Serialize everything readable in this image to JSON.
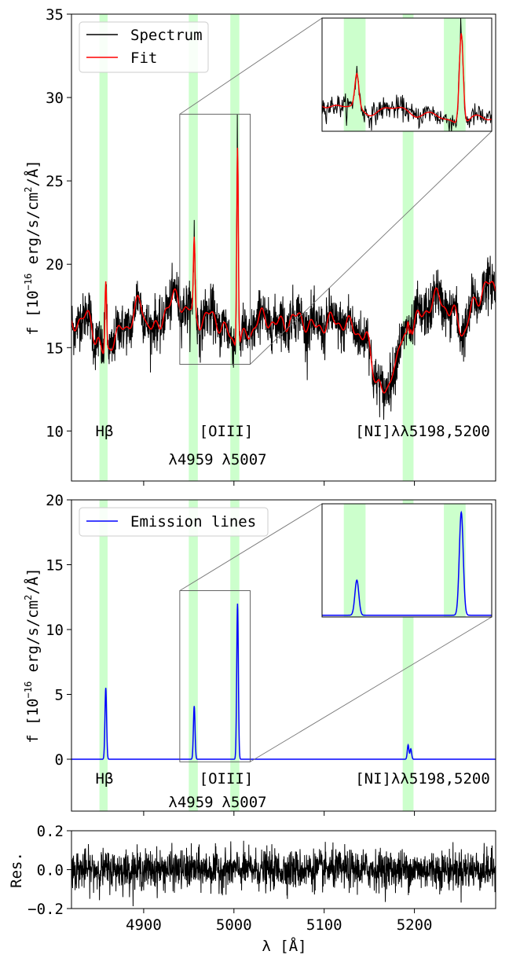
{
  "chart_data": [
    {
      "type": "line",
      "panel": "top",
      "ylabel_prefix": "f [10",
      "ylabel_exp": "−16",
      "ylabel_mid": " erg/s/cm",
      "ylabel_sq": "2",
      "ylabel_suffix": "/Å]",
      "xlim": [
        4820,
        5290
      ],
      "ylim": [
        7,
        35
      ],
      "yticks": [
        "10",
        "15",
        "20",
        "25",
        "30",
        "35"
      ],
      "yticks_values": [
        10,
        15,
        20,
        25,
        30,
        35
      ],
      "legend": [
        {
          "label": "Spectrum",
          "color": "#000000"
        },
        {
          "label": "Fit",
          "color": "#ff0000"
        }
      ],
      "shaded_regions": [
        [
          4851,
          4860
        ],
        [
          4950,
          4960
        ],
        [
          4996,
          5006
        ],
        [
          5187,
          5199
        ]
      ],
      "line_labels": {
        "hbeta": "Hβ",
        "oiii": "[OIII]",
        "l4959": "λ4959",
        "l5007": "λ5007",
        "ni": "[NI]λλ5198,5200"
      },
      "continuum_points": [
        [
          4820,
          16.5
        ],
        [
          4840,
          16.8
        ],
        [
          4848,
          15.5
        ],
        [
          4856,
          14.5
        ],
        [
          4870,
          15.8
        ],
        [
          4880,
          16.2
        ],
        [
          4895,
          17.6
        ],
        [
          4905,
          16.5
        ],
        [
          4915,
          16.0
        ],
        [
          4925,
          17.4
        ],
        [
          4935,
          18.0
        ],
        [
          4950,
          17.2
        ],
        [
          4965,
          16.6
        ],
        [
          4975,
          17.0
        ],
        [
          4990,
          16.0
        ],
        [
          5005,
          15.2
        ],
        [
          5015,
          15.8
        ],
        [
          5030,
          16.8
        ],
        [
          5050,
          16.4
        ],
        [
          5070,
          16.8
        ],
        [
          5090,
          16.2
        ],
        [
          5110,
          16.6
        ],
        [
          5130,
          16.3
        ],
        [
          5145,
          15.6
        ],
        [
          5160,
          13.0
        ],
        [
          5168,
          12.0
        ],
        [
          5178,
          14.2
        ],
        [
          5190,
          15.6
        ],
        [
          5205,
          16.8
        ],
        [
          5225,
          18.0
        ],
        [
          5240,
          17.2
        ],
        [
          5255,
          16.0
        ],
        [
          5265,
          17.5
        ],
        [
          5280,
          18.8
        ],
        [
          5290,
          18.5
        ]
      ],
      "emission_lines": [
        {
          "name": "Hβ",
          "center": 4858,
          "peak": 4.2
        },
        {
          "name": "[OIII] 4959",
          "center": 4956,
          "peak": 4.3
        },
        {
          "name": "[OIII] 5007",
          "center": 5004,
          "peak": 12.2
        },
        {
          "name": "[NI] 5198",
          "center": 5193,
          "peak": 0.9
        },
        {
          "name": "[NI] 5200",
          "center": 5196,
          "peak": 0.6
        }
      ],
      "zoom_region": {
        "x": [
          4940,
          5018
        ],
        "y": [
          14,
          29
        ]
      }
    },
    {
      "type": "line",
      "panel": "middle",
      "ylabel_prefix": "f [10",
      "ylabel_exp": "−16",
      "ylabel_mid": " erg/s/cm",
      "ylabel_sq": "2",
      "ylabel_suffix": "/Å]",
      "xlim": [
        4820,
        5290
      ],
      "ylim": [
        -4,
        20
      ],
      "yticks": [
        "0",
        "5",
        "10",
        "15",
        "20"
      ],
      "yticks_values": [
        0,
        5,
        10,
        15,
        20
      ],
      "legend": [
        {
          "label": "Emission lines",
          "color": "#0000ff"
        }
      ],
      "emission_lines": [
        {
          "center": 4858,
          "peak": 5.5
        },
        {
          "center": 4956,
          "peak": 4.1
        },
        {
          "center": 5004,
          "peak": 12.0
        },
        {
          "center": 5193,
          "peak": 1.1
        },
        {
          "center": 5196,
          "peak": 0.8
        }
      ],
      "zoom_region": {
        "x": [
          4940,
          5018
        ],
        "y": [
          -0.2,
          13
        ]
      }
    },
    {
      "type": "line",
      "panel": "residuals",
      "ylabel": "Res.",
      "xlabel": "λ [Å]",
      "xlim": [
        4820,
        5290
      ],
      "ylim": [
        -0.2,
        0.2
      ],
      "yticks": [
        "0.2",
        "0.0",
        "−0.2"
      ],
      "yticks_values": [
        0.2,
        0.0,
        -0.2
      ],
      "xticks": [
        "4900",
        "5000",
        "5100",
        "5200"
      ],
      "xticks_values": [
        4900,
        5000,
        5100,
        5200
      ],
      "noise_amplitude": 0.05
    }
  ]
}
